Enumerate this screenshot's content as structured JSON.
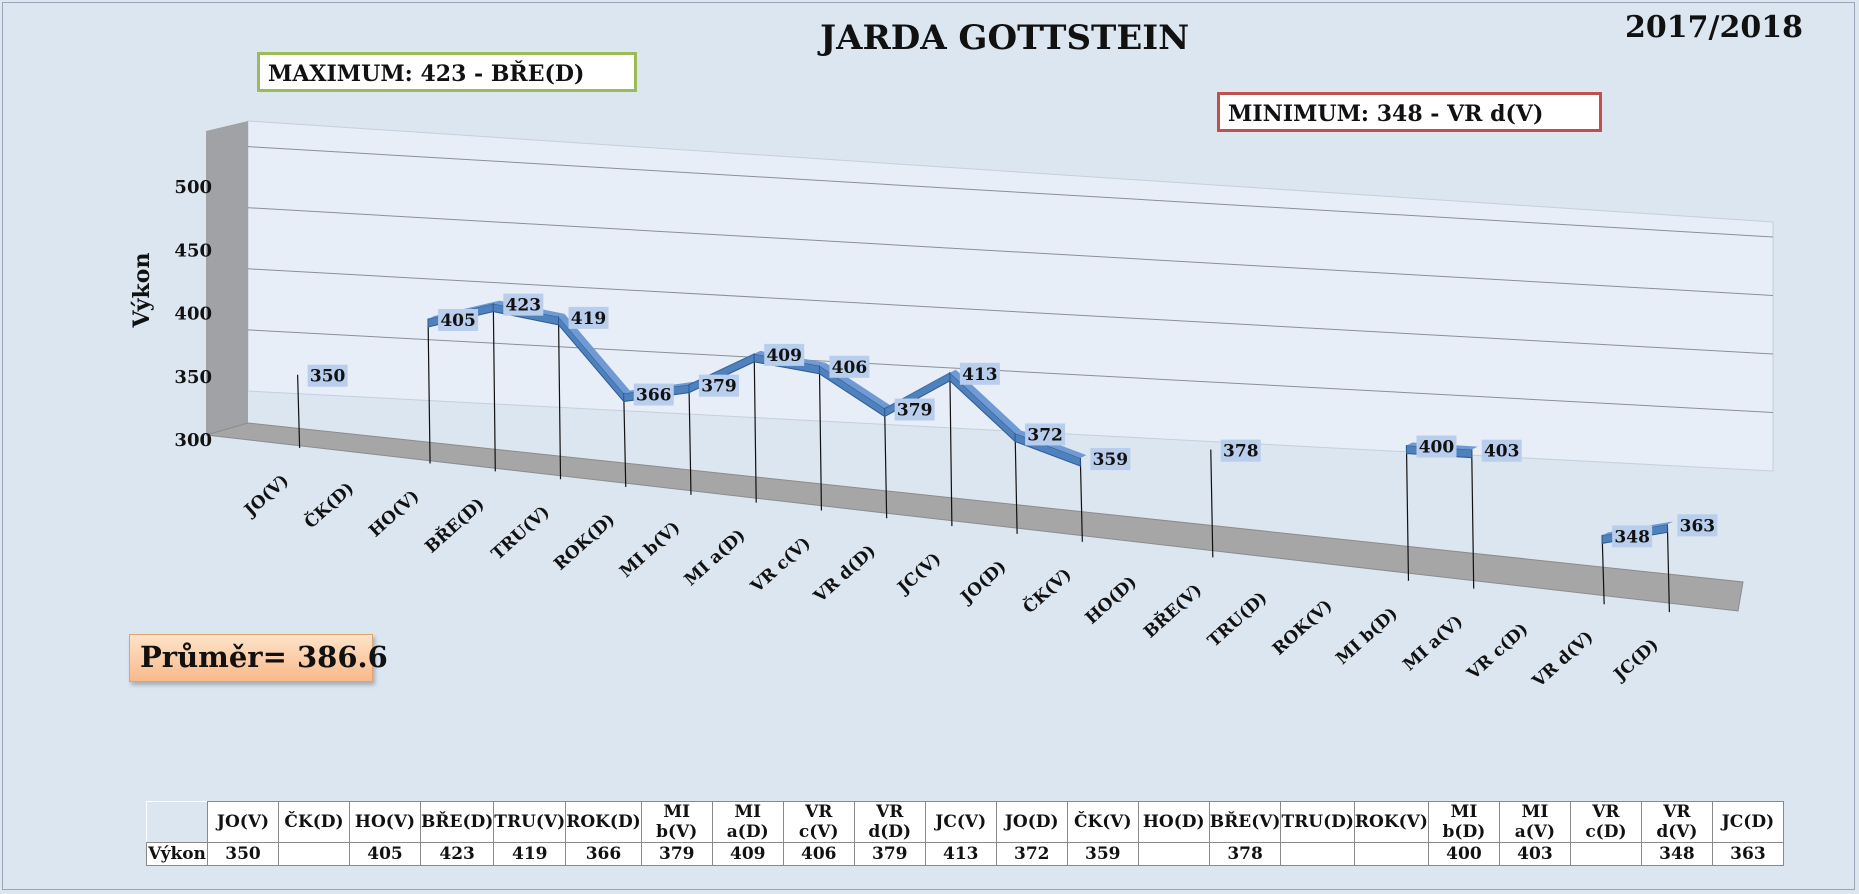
{
  "header": {
    "title": "JARDA GOTTSTEIN",
    "season": "2017/2018",
    "maximum": "MAXIMUM: 423 - BŘE(D)",
    "minimum": "MINIMUM:  348 - VR d(V)",
    "average": "Průměr= 386.6"
  },
  "chart_data": {
    "type": "line",
    "title": "JARDA GOTTSTEIN",
    "ylabel": "Výkon",
    "xlabel": "",
    "ylim": [
      300,
      500
    ],
    "yticks": [
      "300",
      "350",
      "400",
      "450",
      "500"
    ],
    "categories": [
      "JO(V)",
      "ČK(D)",
      "HO(V)",
      "BŘE(D)",
      "TRU(V)",
      "ROK(D)",
      "MI b(V)",
      "MI a(D)",
      "VR c(V)",
      "VR d(D)",
      "JC(V)",
      "JO(D)",
      "ČK(V)",
      "HO(D)",
      "BŘE(V)",
      "TRU(D)",
      "ROK(V)",
      "MI b(D)",
      "MI a(V)",
      "VR c(D)",
      "VR d(V)",
      "JC(D)"
    ],
    "series": [
      {
        "name": "Výkon",
        "values": [
          350,
          null,
          405,
          423,
          419,
          366,
          379,
          409,
          406,
          379,
          413,
          372,
          359,
          null,
          378,
          null,
          null,
          400,
          403,
          null,
          348,
          363
        ]
      }
    ],
    "value_labels": [
      "350",
      "",
      "405",
      "423",
      "419",
      "366",
      "379",
      "409",
      "406",
      "379",
      "413",
      "372",
      "359",
      "",
      "378",
      "",
      "",
      "400",
      "403",
      "",
      "348",
      "363"
    ],
    "line_color": "#4f81bd",
    "label_bg": "#b9cdec",
    "grid": true,
    "legend": "none",
    "style": "3d-line"
  },
  "table": {
    "row_label": "Výkon"
  }
}
